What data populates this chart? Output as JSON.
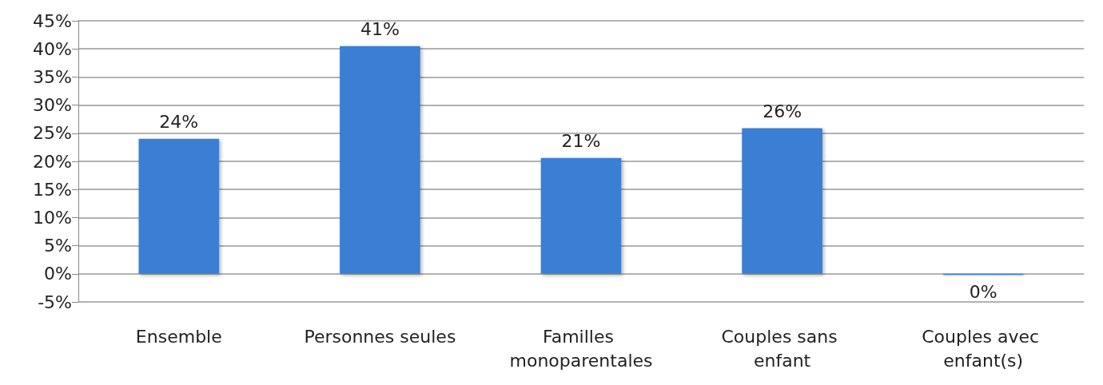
{
  "chart_data": {
    "type": "bar",
    "categories": [
      "Ensemble",
      "Personnes seules",
      "Familles monoparentales",
      "Couples sans enfant",
      "Couples avec enfant(s)"
    ],
    "values": [
      24.0,
      40.5,
      20.6,
      25.9,
      -0.2
    ],
    "value_labels": [
      "24%",
      "41%",
      "21%",
      "26%",
      "0%"
    ],
    "color": "#3a7fd5",
    "ylim": [
      -5,
      45
    ],
    "yticks": [
      {
        "value": -5,
        "label": "-5%"
      },
      {
        "value": 0,
        "label": "0%"
      },
      {
        "value": 5,
        "label": "5%"
      },
      {
        "value": 10,
        "label": "10%"
      },
      {
        "value": 15,
        "label": "15%"
      },
      {
        "value": 20,
        "label": "20%"
      },
      {
        "value": 25,
        "label": "25%"
      },
      {
        "value": 30,
        "label": "30%"
      },
      {
        "value": 35,
        "label": "35%"
      },
      {
        "value": 40,
        "label": "40%"
      },
      {
        "value": 45,
        "label": "45%"
      }
    ],
    "grid": "y"
  }
}
